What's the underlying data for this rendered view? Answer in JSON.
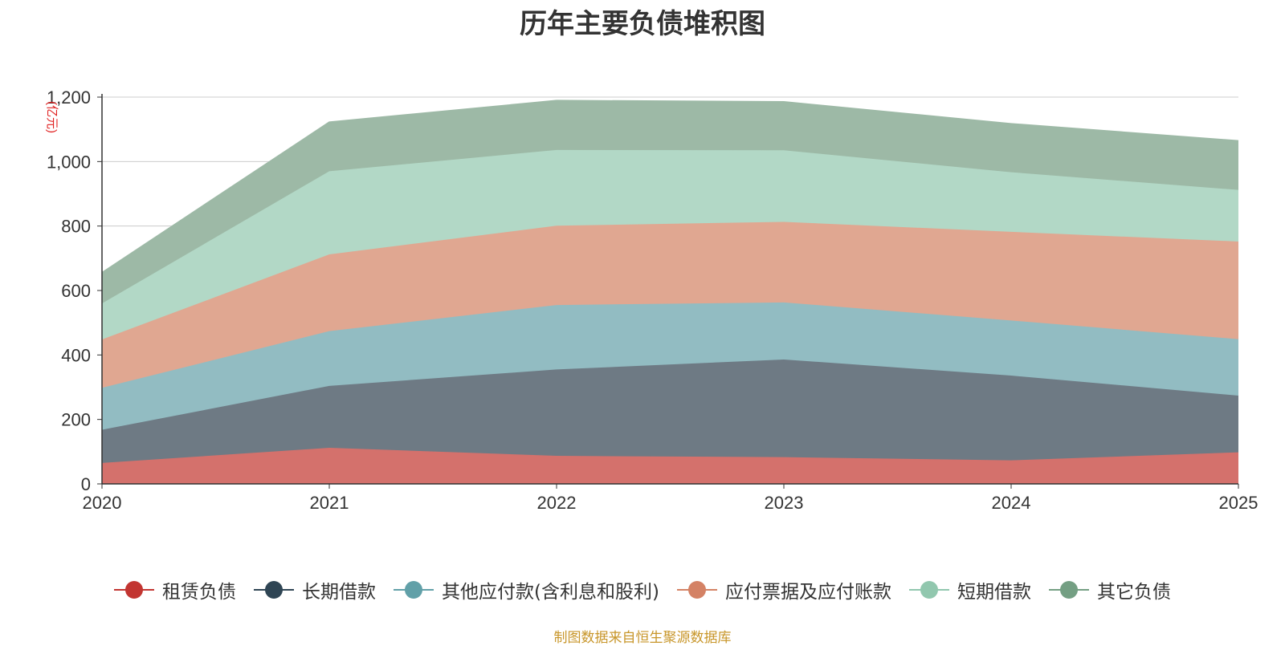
{
  "chart_data": {
    "type": "area",
    "stacked": true,
    "title": "历年主要负债堆积图",
    "ylabel": "(亿元)",
    "xlabel": "",
    "categories": [
      "2020",
      "2021",
      "2022",
      "2023",
      "2024",
      "2025"
    ],
    "ylim": [
      0,
      1200
    ],
    "yticks": [
      0,
      200,
      400,
      600,
      800,
      1000,
      1200
    ],
    "ytick_labels": [
      "0",
      "200",
      "400",
      "600",
      "800",
      "1,000",
      "1,200"
    ],
    "grid": true,
    "legend_position": "bottom",
    "series": [
      {
        "name": "租赁负债",
        "color": "#c23531",
        "fill": "#d4716c",
        "values": [
          65,
          112,
          87,
          83,
          73,
          98
        ]
      },
      {
        "name": "长期借款",
        "color": "#2f4554",
        "fill": "#6e7a84",
        "values": [
          103,
          192,
          268,
          303,
          263,
          176
        ]
      },
      {
        "name": "其他应付款(含利息和股利)",
        "color": "#61a0a8",
        "fill": "#92bcc2",
        "values": [
          130,
          170,
          200,
          177,
          171,
          175
        ]
      },
      {
        "name": "应付票据及应付账款",
        "color": "#d48265",
        "fill": "#e0a791",
        "values": [
          150,
          238,
          246,
          250,
          275,
          303
        ]
      },
      {
        "name": "短期借款",
        "color": "#91c7ae",
        "fill": "#b2d8c6",
        "values": [
          112,
          258,
          235,
          222,
          185,
          160
        ]
      },
      {
        "name": "其它负债",
        "color": "#749f83",
        "fill": "#9db9a6",
        "values": [
          95,
          152,
          153,
          150,
          150,
          152
        ]
      }
    ]
  },
  "source_note": "制图数据来自恒生聚源数据库"
}
